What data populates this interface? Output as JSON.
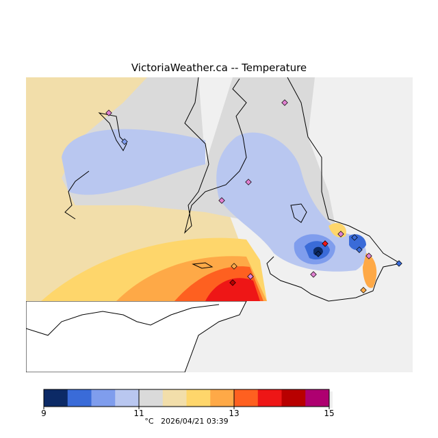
{
  "title": "VictoriaWeather.ca -- Temperature",
  "legend": {
    "colors": [
      "#0c2a66",
      "#3a6bd8",
      "#7f9ded",
      "#b9c7f0",
      "#dadada",
      "#f2deaa",
      "#fed66b",
      "#fea947",
      "#fe6020",
      "#ee1616",
      "#b80000",
      "#ae0070"
    ],
    "min": 9,
    "max": 15,
    "ticks": [
      "9",
      "11",
      "13",
      "15"
    ],
    "unit": "°C",
    "timestamp": "2026/04/21 03:39"
  }
}
